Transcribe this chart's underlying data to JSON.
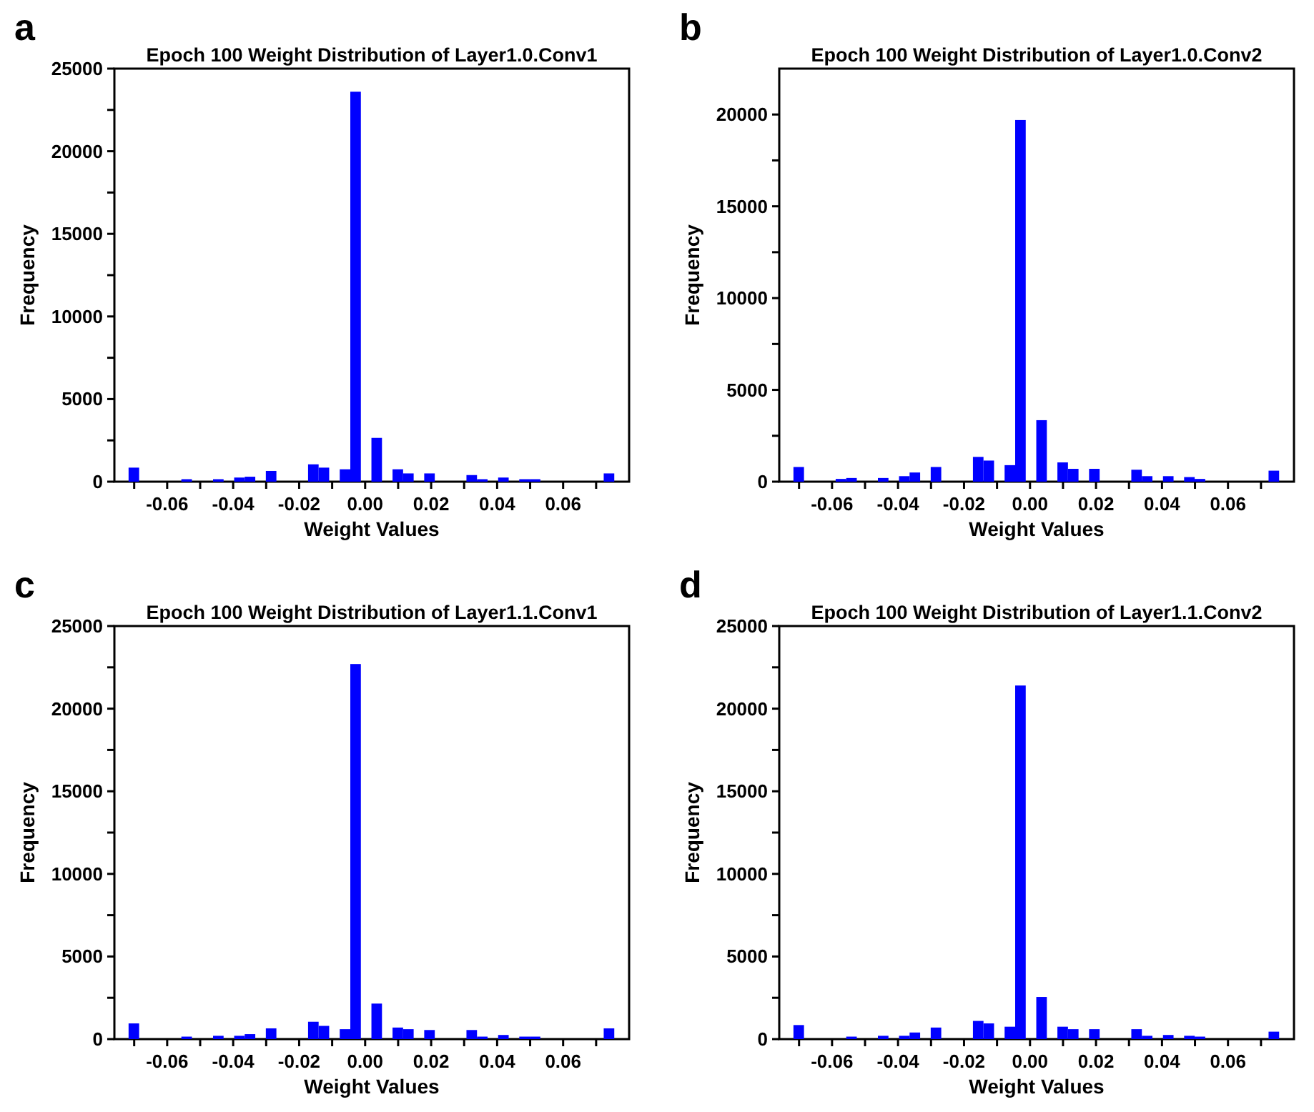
{
  "chart_data": [
    {
      "type": "histogram",
      "title": "Epoch 100 Weight Distribution of Layer1.0.Conv1",
      "xlabel": "Weight Values",
      "ylabel": "Frequency",
      "annotations": [
        "a"
      ],
      "color": "#0000ff",
      "bins": [
        -0.0717,
        -0.0685,
        -0.0653,
        -0.0621,
        -0.0589,
        -0.0557,
        -0.0525,
        -0.0493,
        -0.0461,
        -0.0429,
        -0.0397,
        -0.0365,
        -0.0333,
        -0.0301,
        -0.0269,
        -0.0237,
        -0.0205,
        -0.0173,
        -0.0141,
        -0.0109,
        -0.0077,
        -0.0045,
        -0.0013,
        0.0019,
        0.0051,
        0.0083,
        0.0115,
        0.0147,
        0.0179,
        0.0211,
        0.0243,
        0.0275,
        0.0307,
        0.0339,
        0.0371,
        0.0403,
        0.0435,
        0.0467,
        0.0499,
        0.0531,
        0.0563,
        0.0595,
        0.0627,
        0.0659,
        0.0691,
        0.0723,
        0.0755
      ],
      "values": [
        850,
        0,
        0,
        0,
        0,
        150,
        0,
        0,
        150,
        0,
        250,
        300,
        0,
        650,
        0,
        0,
        0,
        1050,
        850,
        0,
        750,
        23600,
        0,
        2650,
        0,
        750,
        500,
        0,
        500,
        0,
        0,
        0,
        400,
        150,
        0,
        250,
        0,
        150,
        150,
        0,
        0,
        0,
        0,
        0,
        0,
        500
      ],
      "xlim": [
        -0.076,
        0.08
      ],
      "xticks": [
        {
          "value": -0.07,
          "label": null
        },
        -0.06,
        {
          "value": -0.05,
          "label": null
        },
        -0.04,
        {
          "value": -0.03,
          "label": null
        },
        -0.02,
        {
          "value": -0.01,
          "label": null
        },
        {
          "value": 0,
          "label": "0.00"
        },
        {
          "value": 0.01,
          "label": null
        },
        0.02,
        {
          "value": 0.03,
          "label": null
        },
        0.04,
        {
          "value": 0.05,
          "label": null
        },
        0.06,
        {
          "value": 0.07,
          "label": null
        }
      ],
      "ylim": [
        0,
        25000
      ],
      "yticks": [
        0,
        {
          "value": 2500,
          "label": null
        },
        5000,
        {
          "value": 7500,
          "label": null
        },
        10000,
        {
          "value": 12500,
          "label": null
        },
        15000,
        {
          "value": 17500,
          "label": null
        },
        20000,
        {
          "value": 22500,
          "label": null
        },
        25000
      ]
    },
    {
      "type": "histogram",
      "title": "Epoch 100 Weight Distribution of Layer1.0.Conv2",
      "xlabel": "Weight Values",
      "ylabel": "Frequency",
      "annotations": [
        "b"
      ],
      "color": "#0000ff",
      "bins": [
        -0.0717,
        -0.0685,
        -0.0653,
        -0.0621,
        -0.0589,
        -0.0557,
        -0.0525,
        -0.0493,
        -0.0461,
        -0.0429,
        -0.0397,
        -0.0365,
        -0.0333,
        -0.0301,
        -0.0269,
        -0.0237,
        -0.0205,
        -0.0173,
        -0.0141,
        -0.0109,
        -0.0077,
        -0.0045,
        -0.0013,
        0.0019,
        0.0051,
        0.0083,
        0.0115,
        0.0147,
        0.0179,
        0.0211,
        0.0243,
        0.0275,
        0.0307,
        0.0339,
        0.0371,
        0.0403,
        0.0435,
        0.0467,
        0.0499,
        0.0531,
        0.0563,
        0.0595,
        0.0627,
        0.0659,
        0.0691,
        0.0723,
        0.0755
      ],
      "values": [
        800,
        0,
        0,
        0,
        150,
        200,
        0,
        0,
        200,
        0,
        300,
        500,
        0,
        800,
        0,
        0,
        0,
        1350,
        1150,
        0,
        900,
        19700,
        0,
        3350,
        0,
        1050,
        700,
        0,
        700,
        0,
        0,
        0,
        650,
        300,
        0,
        300,
        0,
        250,
        150,
        0,
        0,
        0,
        0,
        0,
        0,
        600
      ],
      "xlim": [
        -0.076,
        0.08
      ],
      "xticks": [
        {
          "value": -0.07,
          "label": null
        },
        -0.06,
        {
          "value": -0.05,
          "label": null
        },
        -0.04,
        {
          "value": -0.03,
          "label": null
        },
        -0.02,
        {
          "value": -0.01,
          "label": null
        },
        {
          "value": 0,
          "label": "0.00"
        },
        {
          "value": 0.01,
          "label": null
        },
        0.02,
        {
          "value": 0.03,
          "label": null
        },
        0.04,
        {
          "value": 0.05,
          "label": null
        },
        0.06,
        {
          "value": 0.07,
          "label": null
        }
      ],
      "ylim": [
        0,
        22500
      ],
      "yticks": [
        0,
        {
          "value": 2500,
          "label": null
        },
        5000,
        {
          "value": 7500,
          "label": null
        },
        10000,
        {
          "value": 12500,
          "label": null
        },
        15000,
        {
          "value": 17500,
          "label": null
        },
        20000
      ]
    },
    {
      "type": "histogram",
      "title": "Epoch 100 Weight Distribution of Layer1.1.Conv1",
      "xlabel": "Weight Values",
      "ylabel": "Frequency",
      "annotations": [
        "c"
      ],
      "color": "#0000ff",
      "bins": [
        -0.0717,
        -0.0685,
        -0.0653,
        -0.0621,
        -0.0589,
        -0.0557,
        -0.0525,
        -0.0493,
        -0.0461,
        -0.0429,
        -0.0397,
        -0.0365,
        -0.0333,
        -0.0301,
        -0.0269,
        -0.0237,
        -0.0205,
        -0.0173,
        -0.0141,
        -0.0109,
        -0.0077,
        -0.0045,
        -0.0013,
        0.0019,
        0.0051,
        0.0083,
        0.0115,
        0.0147,
        0.0179,
        0.0211,
        0.0243,
        0.0275,
        0.0307,
        0.0339,
        0.0371,
        0.0403,
        0.0435,
        0.0467,
        0.0499,
        0.0531,
        0.0563,
        0.0595,
        0.0627,
        0.0659,
        0.0691,
        0.0723,
        0.0755
      ],
      "values": [
        950,
        0,
        0,
        0,
        0,
        150,
        0,
        0,
        200,
        0,
        200,
        300,
        0,
        650,
        0,
        0,
        0,
        1050,
        800,
        0,
        600,
        22700,
        0,
        2150,
        0,
        700,
        600,
        0,
        550,
        0,
        0,
        0,
        550,
        150,
        0,
        250,
        0,
        150,
        150,
        0,
        0,
        0,
        0,
        0,
        0,
        650
      ],
      "xlim": [
        -0.076,
        0.08
      ],
      "xticks": [
        {
          "value": -0.07,
          "label": null
        },
        -0.06,
        {
          "value": -0.05,
          "label": null
        },
        -0.04,
        {
          "value": -0.03,
          "label": null
        },
        -0.02,
        {
          "value": -0.01,
          "label": null
        },
        {
          "value": 0,
          "label": "0.00"
        },
        {
          "value": 0.01,
          "label": null
        },
        0.02,
        {
          "value": 0.03,
          "label": null
        },
        0.04,
        {
          "value": 0.05,
          "label": null
        },
        0.06,
        {
          "value": 0.07,
          "label": null
        }
      ],
      "ylim": [
        0,
        25000
      ],
      "yticks": [
        0,
        {
          "value": 2500,
          "label": null
        },
        5000,
        {
          "value": 7500,
          "label": null
        },
        10000,
        {
          "value": 12500,
          "label": null
        },
        15000,
        {
          "value": 17500,
          "label": null
        },
        20000,
        {
          "value": 22500,
          "label": null
        },
        25000
      ]
    },
    {
      "type": "histogram",
      "title": "Epoch 100 Weight Distribution of Layer1.1.Conv2",
      "xlabel": "Weight Values",
      "ylabel": "Frequency",
      "annotations": [
        "d"
      ],
      "color": "#0000ff",
      "bins": [
        -0.0717,
        -0.0685,
        -0.0653,
        -0.0621,
        -0.0589,
        -0.0557,
        -0.0525,
        -0.0493,
        -0.0461,
        -0.0429,
        -0.0397,
        -0.0365,
        -0.0333,
        -0.0301,
        -0.0269,
        -0.0237,
        -0.0205,
        -0.0173,
        -0.0141,
        -0.0109,
        -0.0077,
        -0.0045,
        -0.0013,
        0.0019,
        0.0051,
        0.0083,
        0.0115,
        0.0147,
        0.0179,
        0.0211,
        0.0243,
        0.0275,
        0.0307,
        0.0339,
        0.0371,
        0.0403,
        0.0435,
        0.0467,
        0.0499,
        0.0531,
        0.0563,
        0.0595,
        0.0627,
        0.0659,
        0.0691,
        0.0723,
        0.0755
      ],
      "values": [
        850,
        0,
        0,
        0,
        0,
        150,
        0,
        0,
        200,
        0,
        200,
        400,
        0,
        700,
        0,
        0,
        0,
        1100,
        950,
        0,
        750,
        21400,
        0,
        2550,
        0,
        750,
        600,
        0,
        600,
        0,
        0,
        0,
        600,
        200,
        0,
        250,
        0,
        200,
        150,
        0,
        0,
        0,
        0,
        0,
        0,
        450
      ],
      "xlim": [
        -0.076,
        0.08
      ],
      "xticks": [
        {
          "value": -0.07,
          "label": null
        },
        -0.06,
        {
          "value": -0.05,
          "label": null
        },
        -0.04,
        {
          "value": -0.03,
          "label": null
        },
        -0.02,
        {
          "value": -0.01,
          "label": null
        },
        {
          "value": 0,
          "label": "0.00"
        },
        {
          "value": 0.01,
          "label": null
        },
        0.02,
        {
          "value": 0.03,
          "label": null
        },
        0.04,
        {
          "value": 0.05,
          "label": null
        },
        0.06,
        {
          "value": 0.07,
          "label": null
        }
      ],
      "ylim": [
        0,
        25000
      ],
      "yticks": [
        0,
        {
          "value": 2500,
          "label": null
        },
        5000,
        {
          "value": 7500,
          "label": null
        },
        10000,
        {
          "value": 12500,
          "label": null
        },
        15000,
        {
          "value": 17500,
          "label": null
        },
        20000,
        {
          "value": 22500,
          "label": null
        },
        25000
      ]
    }
  ]
}
